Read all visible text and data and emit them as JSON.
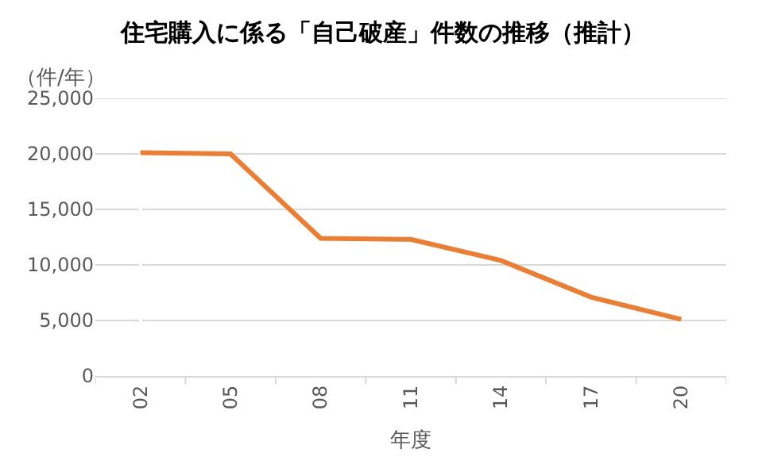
{
  "chart_data": {
    "type": "line",
    "title": "住宅購入に係る「自己破産」件数の推移（推計）",
    "xlabel": "年度",
    "ylabel": "（件/年）",
    "categories": [
      "02",
      "05",
      "08",
      "11",
      "14",
      "17",
      "20"
    ],
    "series": [
      {
        "color": "#ed7d31",
        "values": [
          20100,
          20000,
          12400,
          12300,
          10400,
          7100,
          5100
        ]
      }
    ],
    "ylim": [
      0,
      25000
    ],
    "yticks": [
      {
        "value": 0,
        "label": "0"
      },
      {
        "value": 5000,
        "label": "5,000"
      },
      {
        "value": 10000,
        "label": "10,000"
      },
      {
        "value": 15000,
        "label": "15,000"
      },
      {
        "value": 20000,
        "label": "20,000"
      },
      {
        "value": 25000,
        "label": "25,000"
      }
    ],
    "grid": "y",
    "marker": "none",
    "line_style": "solid"
  }
}
